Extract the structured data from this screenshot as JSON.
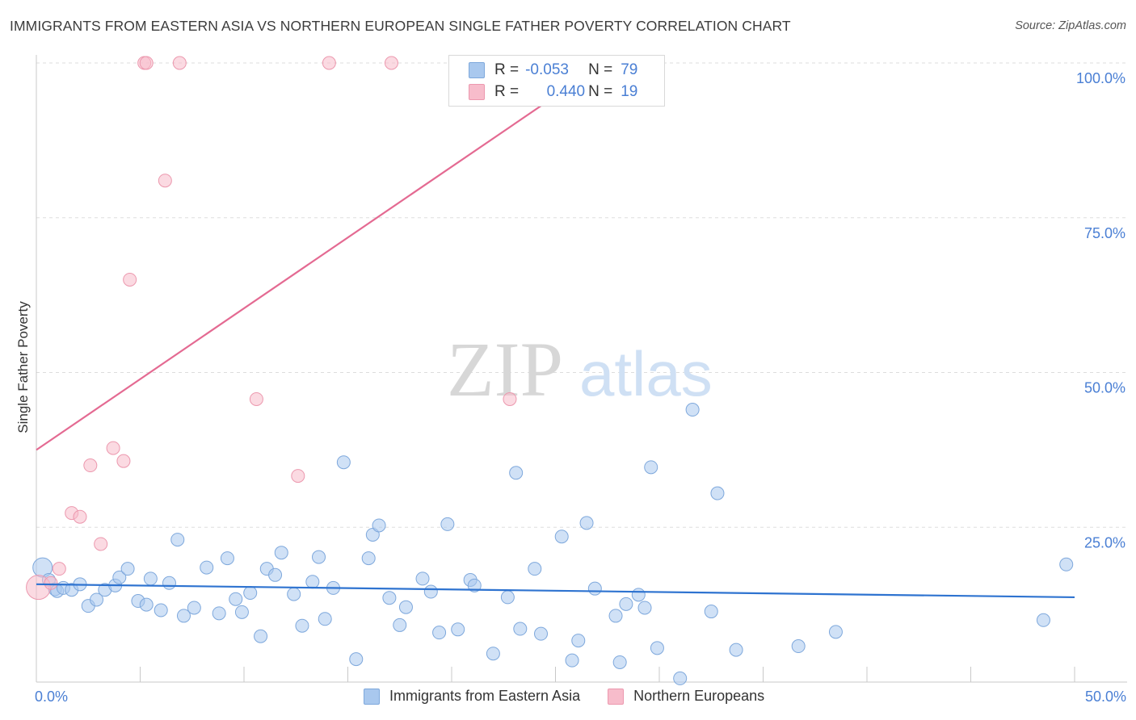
{
  "header": {
    "title": "IMMIGRANTS FROM EASTERN ASIA VS NORTHERN EUROPEAN SINGLE FATHER POVERTY CORRELATION CHART",
    "source": "Source: ZipAtlas.com"
  },
  "watermark": {
    "zip": "ZIP",
    "atlas": "atlas"
  },
  "legend_top": {
    "rows": [
      {
        "r_label": "R =",
        "r_value": "-0.053",
        "n_label": "N =",
        "n_value": "79"
      },
      {
        "r_label": "R =",
        "r_value": "0.440",
        "n_label": "N =",
        "n_value": "19"
      }
    ]
  },
  "legend_bottom": {
    "items": [
      {
        "label": "Immigrants from Eastern Asia"
      },
      {
        "label": "Northern Europeans"
      }
    ]
  },
  "colors": {
    "blue_fill": "#a9c8ee",
    "blue_stroke": "#7ea8dc",
    "blue_line": "#2e73d0",
    "pink_fill": "#f7bccb",
    "pink_stroke": "#ec98ae",
    "pink_line": "#e46a92",
    "tick_label": "#4a7fd4",
    "grid": "#dddddd"
  },
  "chart_data": {
    "type": "scatter",
    "title": "IMMIGRANTS FROM EASTERN ASIA VS NORTHERN EUROPEAN SINGLE FATHER POVERTY CORRELATION CHART",
    "xlabel": "",
    "ylabel": "Single Father Poverty",
    "xlim": [
      0,
      50
    ],
    "ylim": [
      0,
      100
    ],
    "x_tick_labels": {
      "min": "0.0%",
      "max": "50.0%"
    },
    "y_ticks": [
      {
        "value": 25,
        "label": "25.0%"
      },
      {
        "value": 50,
        "label": "50.0%"
      },
      {
        "value": 75,
        "label": "75.0%"
      },
      {
        "value": 100,
        "label": "100.0%"
      }
    ],
    "series": [
      {
        "name": "Immigrants from Eastern Asia",
        "color": "blue",
        "R": -0.053,
        "N": 79,
        "trend": {
          "x0": 0,
          "y0": 15.8,
          "x1": 50,
          "y1": 13.7
        },
        "points": [
          [
            0.3,
            18.5
          ],
          [
            0.6,
            16.5
          ],
          [
            0.9,
            15.0
          ],
          [
            1.0,
            14.7
          ],
          [
            1.3,
            15.2
          ],
          [
            1.7,
            14.9
          ],
          [
            2.1,
            15.8
          ],
          [
            2.5,
            12.3
          ],
          [
            2.9,
            13.3
          ],
          [
            3.3,
            14.9
          ],
          [
            3.8,
            15.6
          ],
          [
            4.0,
            16.9
          ],
          [
            4.4,
            18.3
          ],
          [
            4.9,
            13.1
          ],
          [
            5.3,
            12.5
          ],
          [
            5.5,
            16.7
          ],
          [
            6.0,
            11.6
          ],
          [
            6.4,
            16.0
          ],
          [
            6.8,
            23.0
          ],
          [
            7.1,
            10.7
          ],
          [
            7.6,
            12.0
          ],
          [
            8.2,
            18.5
          ],
          [
            8.8,
            11.1
          ],
          [
            9.2,
            20.0
          ],
          [
            9.6,
            13.4
          ],
          [
            9.9,
            11.3
          ],
          [
            10.3,
            14.4
          ],
          [
            10.8,
            7.4
          ],
          [
            11.1,
            18.3
          ],
          [
            11.5,
            17.3
          ],
          [
            11.8,
            20.9
          ],
          [
            12.4,
            14.2
          ],
          [
            12.8,
            9.1
          ],
          [
            13.3,
            16.2
          ],
          [
            13.6,
            20.2
          ],
          [
            13.9,
            10.2
          ],
          [
            14.3,
            15.2
          ],
          [
            14.8,
            35.5
          ],
          [
            15.4,
            3.7
          ],
          [
            16.0,
            20.0
          ],
          [
            16.2,
            23.8
          ],
          [
            16.5,
            25.3
          ],
          [
            17.0,
            13.6
          ],
          [
            17.5,
            9.2
          ],
          [
            17.8,
            12.1
          ],
          [
            18.6,
            16.7
          ],
          [
            19.0,
            14.6
          ],
          [
            19.4,
            8.0
          ],
          [
            19.8,
            25.5
          ],
          [
            20.3,
            8.5
          ],
          [
            20.9,
            16.5
          ],
          [
            21.1,
            15.6
          ],
          [
            22.0,
            4.6
          ],
          [
            22.7,
            13.7
          ],
          [
            23.1,
            33.8
          ],
          [
            23.3,
            8.6
          ],
          [
            24.0,
            18.3
          ],
          [
            24.3,
            7.8
          ],
          [
            25.3,
            23.5
          ],
          [
            25.8,
            3.5
          ],
          [
            26.1,
            6.7
          ],
          [
            26.5,
            25.7
          ],
          [
            26.9,
            15.1
          ],
          [
            27.9,
            10.7
          ],
          [
            28.1,
            3.2
          ],
          [
            28.4,
            12.6
          ],
          [
            29.0,
            14.1
          ],
          [
            29.3,
            12.0
          ],
          [
            29.6,
            34.7
          ],
          [
            29.9,
            5.5
          ],
          [
            31.0,
            0.6
          ],
          [
            31.6,
            44.0
          ],
          [
            32.5,
            11.4
          ],
          [
            32.8,
            30.5
          ],
          [
            33.7,
            5.2
          ],
          [
            36.7,
            5.8
          ],
          [
            38.5,
            8.1
          ],
          [
            48.5,
            10.0
          ],
          [
            49.6,
            19.0
          ]
        ]
      },
      {
        "name": "Northern Europeans",
        "color": "pink",
        "R": 0.44,
        "N": 19,
        "trend": {
          "x0": 0,
          "y0": 37.5,
          "x1": 25.8,
          "y1": 96.5
        },
        "points": [
          [
            0.1,
            15.3
          ],
          [
            0.7,
            16.0
          ],
          [
            1.1,
            18.3
          ],
          [
            1.7,
            27.3
          ],
          [
            2.1,
            26.7
          ],
          [
            2.6,
            35.0
          ],
          [
            3.1,
            22.3
          ],
          [
            3.7,
            37.8
          ],
          [
            4.2,
            35.7
          ],
          [
            4.5,
            65.0
          ],
          [
            5.2,
            100.0
          ],
          [
            5.3,
            100.0
          ],
          [
            6.2,
            81.0
          ],
          [
            6.9,
            100.0
          ],
          [
            10.6,
            45.7
          ],
          [
            12.6,
            33.3
          ],
          [
            14.1,
            100.0
          ],
          [
            17.1,
            100.0
          ],
          [
            22.8,
            45.7
          ]
        ]
      }
    ]
  }
}
